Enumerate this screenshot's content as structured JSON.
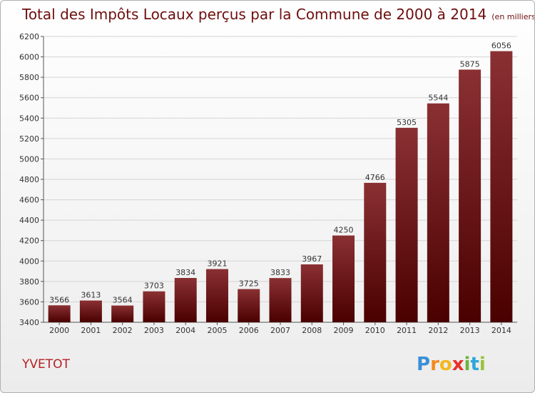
{
  "chart_data": {
    "type": "bar",
    "title": "Total des Impôts Locaux perçus par la Commune de 2000 à 2014",
    "unit": "(en milliers d'€)",
    "categories": [
      "2000",
      "2001",
      "2002",
      "2003",
      "2004",
      "2005",
      "2006",
      "2007",
      "2008",
      "2009",
      "2010",
      "2011",
      "2012",
      "2013",
      "2014"
    ],
    "values": [
      3566,
      3613,
      3564,
      3703,
      3834,
      3921,
      3725,
      3833,
      3967,
      4250,
      4766,
      5305,
      5544,
      5875,
      6056
    ],
    "ylim": [
      3400,
      6200
    ],
    "yticks": [
      3400,
      3600,
      3800,
      4000,
      4200,
      4400,
      4600,
      4800,
      5000,
      5200,
      5400,
      5600,
      5800,
      6000,
      6200
    ],
    "grid": true,
    "xlabel": "",
    "ylabel": "",
    "bar_color": "#6e0e0e"
  },
  "commune": "YVETOT",
  "logo": {
    "letters": [
      "P",
      "r",
      "o",
      "x",
      "i",
      "t",
      "i"
    ],
    "colors": [
      "#3a8fd6",
      "#f28a1e",
      "#f2b81e",
      "#e8312a",
      "#6db33f",
      "#2fa7d9",
      "#9bc23c"
    ]
  }
}
